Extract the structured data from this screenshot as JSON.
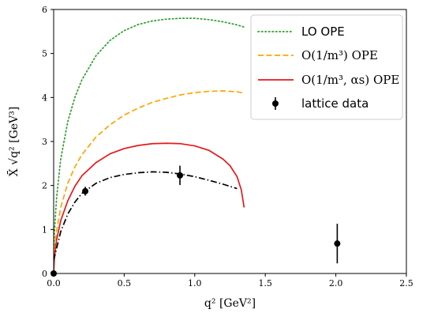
{
  "chart_data": {
    "type": "line",
    "xlabel": "q² [GeV²]",
    "ylabel": "X̄ √q² [GeV³]",
    "xlim": [
      0,
      2.5
    ],
    "ylim": [
      0,
      6
    ],
    "x_ticks": [
      "0.0",
      "0.5",
      "1.0",
      "1.5",
      "2.0",
      "2.5"
    ],
    "y_ticks": [
      "0",
      "1",
      "2",
      "3",
      "4",
      "5",
      "6"
    ],
    "grid": false,
    "legend_position": "top-right",
    "series": [
      {
        "name": "LO OPE",
        "style": "dotted",
        "color": "#2ca02c",
        "x": [
          0.0,
          0.005,
          0.02,
          0.05,
          0.1,
          0.15,
          0.2,
          0.3,
          0.4,
          0.5,
          0.6,
          0.7,
          0.8,
          0.9,
          1.0,
          1.1,
          1.2,
          1.3,
          1.35
        ],
        "y": [
          0.0,
          0.9,
          1.7,
          2.6,
          3.45,
          4.0,
          4.4,
          4.95,
          5.3,
          5.52,
          5.66,
          5.74,
          5.78,
          5.8,
          5.8,
          5.77,
          5.72,
          5.65,
          5.6
        ]
      },
      {
        "name": "O(1/m³) OPE",
        "style": "dashed",
        "color": "#ffa500",
        "x": [
          0.0,
          0.005,
          0.02,
          0.05,
          0.1,
          0.15,
          0.2,
          0.3,
          0.4,
          0.5,
          0.6,
          0.7,
          0.8,
          0.9,
          1.0,
          1.1,
          1.2,
          1.3,
          1.35
        ],
        "y": [
          0.0,
          0.45,
          0.95,
          1.5,
          2.05,
          2.42,
          2.7,
          3.1,
          3.38,
          3.6,
          3.76,
          3.89,
          3.98,
          4.06,
          4.11,
          4.14,
          4.15,
          4.13,
          4.1
        ]
      },
      {
        "name": "O(1/m³, αs) OPE",
        "style": "solid",
        "color": "#e41a1c",
        "x": [
          0.0,
          0.005,
          0.02,
          0.05,
          0.1,
          0.15,
          0.2,
          0.3,
          0.4,
          0.5,
          0.6,
          0.7,
          0.8,
          0.9,
          1.0,
          1.1,
          1.2,
          1.25,
          1.3,
          1.33,
          1.35
        ],
        "y": [
          0.0,
          0.35,
          0.75,
          1.2,
          1.65,
          1.98,
          2.22,
          2.52,
          2.72,
          2.84,
          2.91,
          2.95,
          2.96,
          2.95,
          2.9,
          2.8,
          2.6,
          2.45,
          2.2,
          1.9,
          1.5
        ]
      },
      {
        "name": "",
        "style": "dashdot",
        "color": "#000000",
        "x": [
          0.0,
          0.05,
          0.1,
          0.15,
          0.2,
          0.3,
          0.4,
          0.5,
          0.6,
          0.7,
          0.8,
          0.9,
          1.0,
          1.1,
          1.2,
          1.3
        ],
        "y": [
          0.3,
          0.95,
          1.35,
          1.62,
          1.82,
          2.05,
          2.18,
          2.25,
          2.29,
          2.31,
          2.3,
          2.26,
          2.2,
          2.12,
          2.03,
          1.93
        ]
      }
    ],
    "points": {
      "name": "lattice data",
      "color": "#000000",
      "x": [
        0.0,
        0.224,
        0.895,
        2.01
      ],
      "y": [
        0.0,
        1.87,
        2.23,
        0.68
      ],
      "yerr": [
        0.03,
        0.1,
        0.22,
        0.45
      ]
    },
    "legend": [
      {
        "label": "LO OPE"
      },
      {
        "label": "O(1/m³) OPE"
      },
      {
        "label": "O(1/m³, αs) OPE"
      },
      {
        "label": "lattice data"
      }
    ]
  }
}
